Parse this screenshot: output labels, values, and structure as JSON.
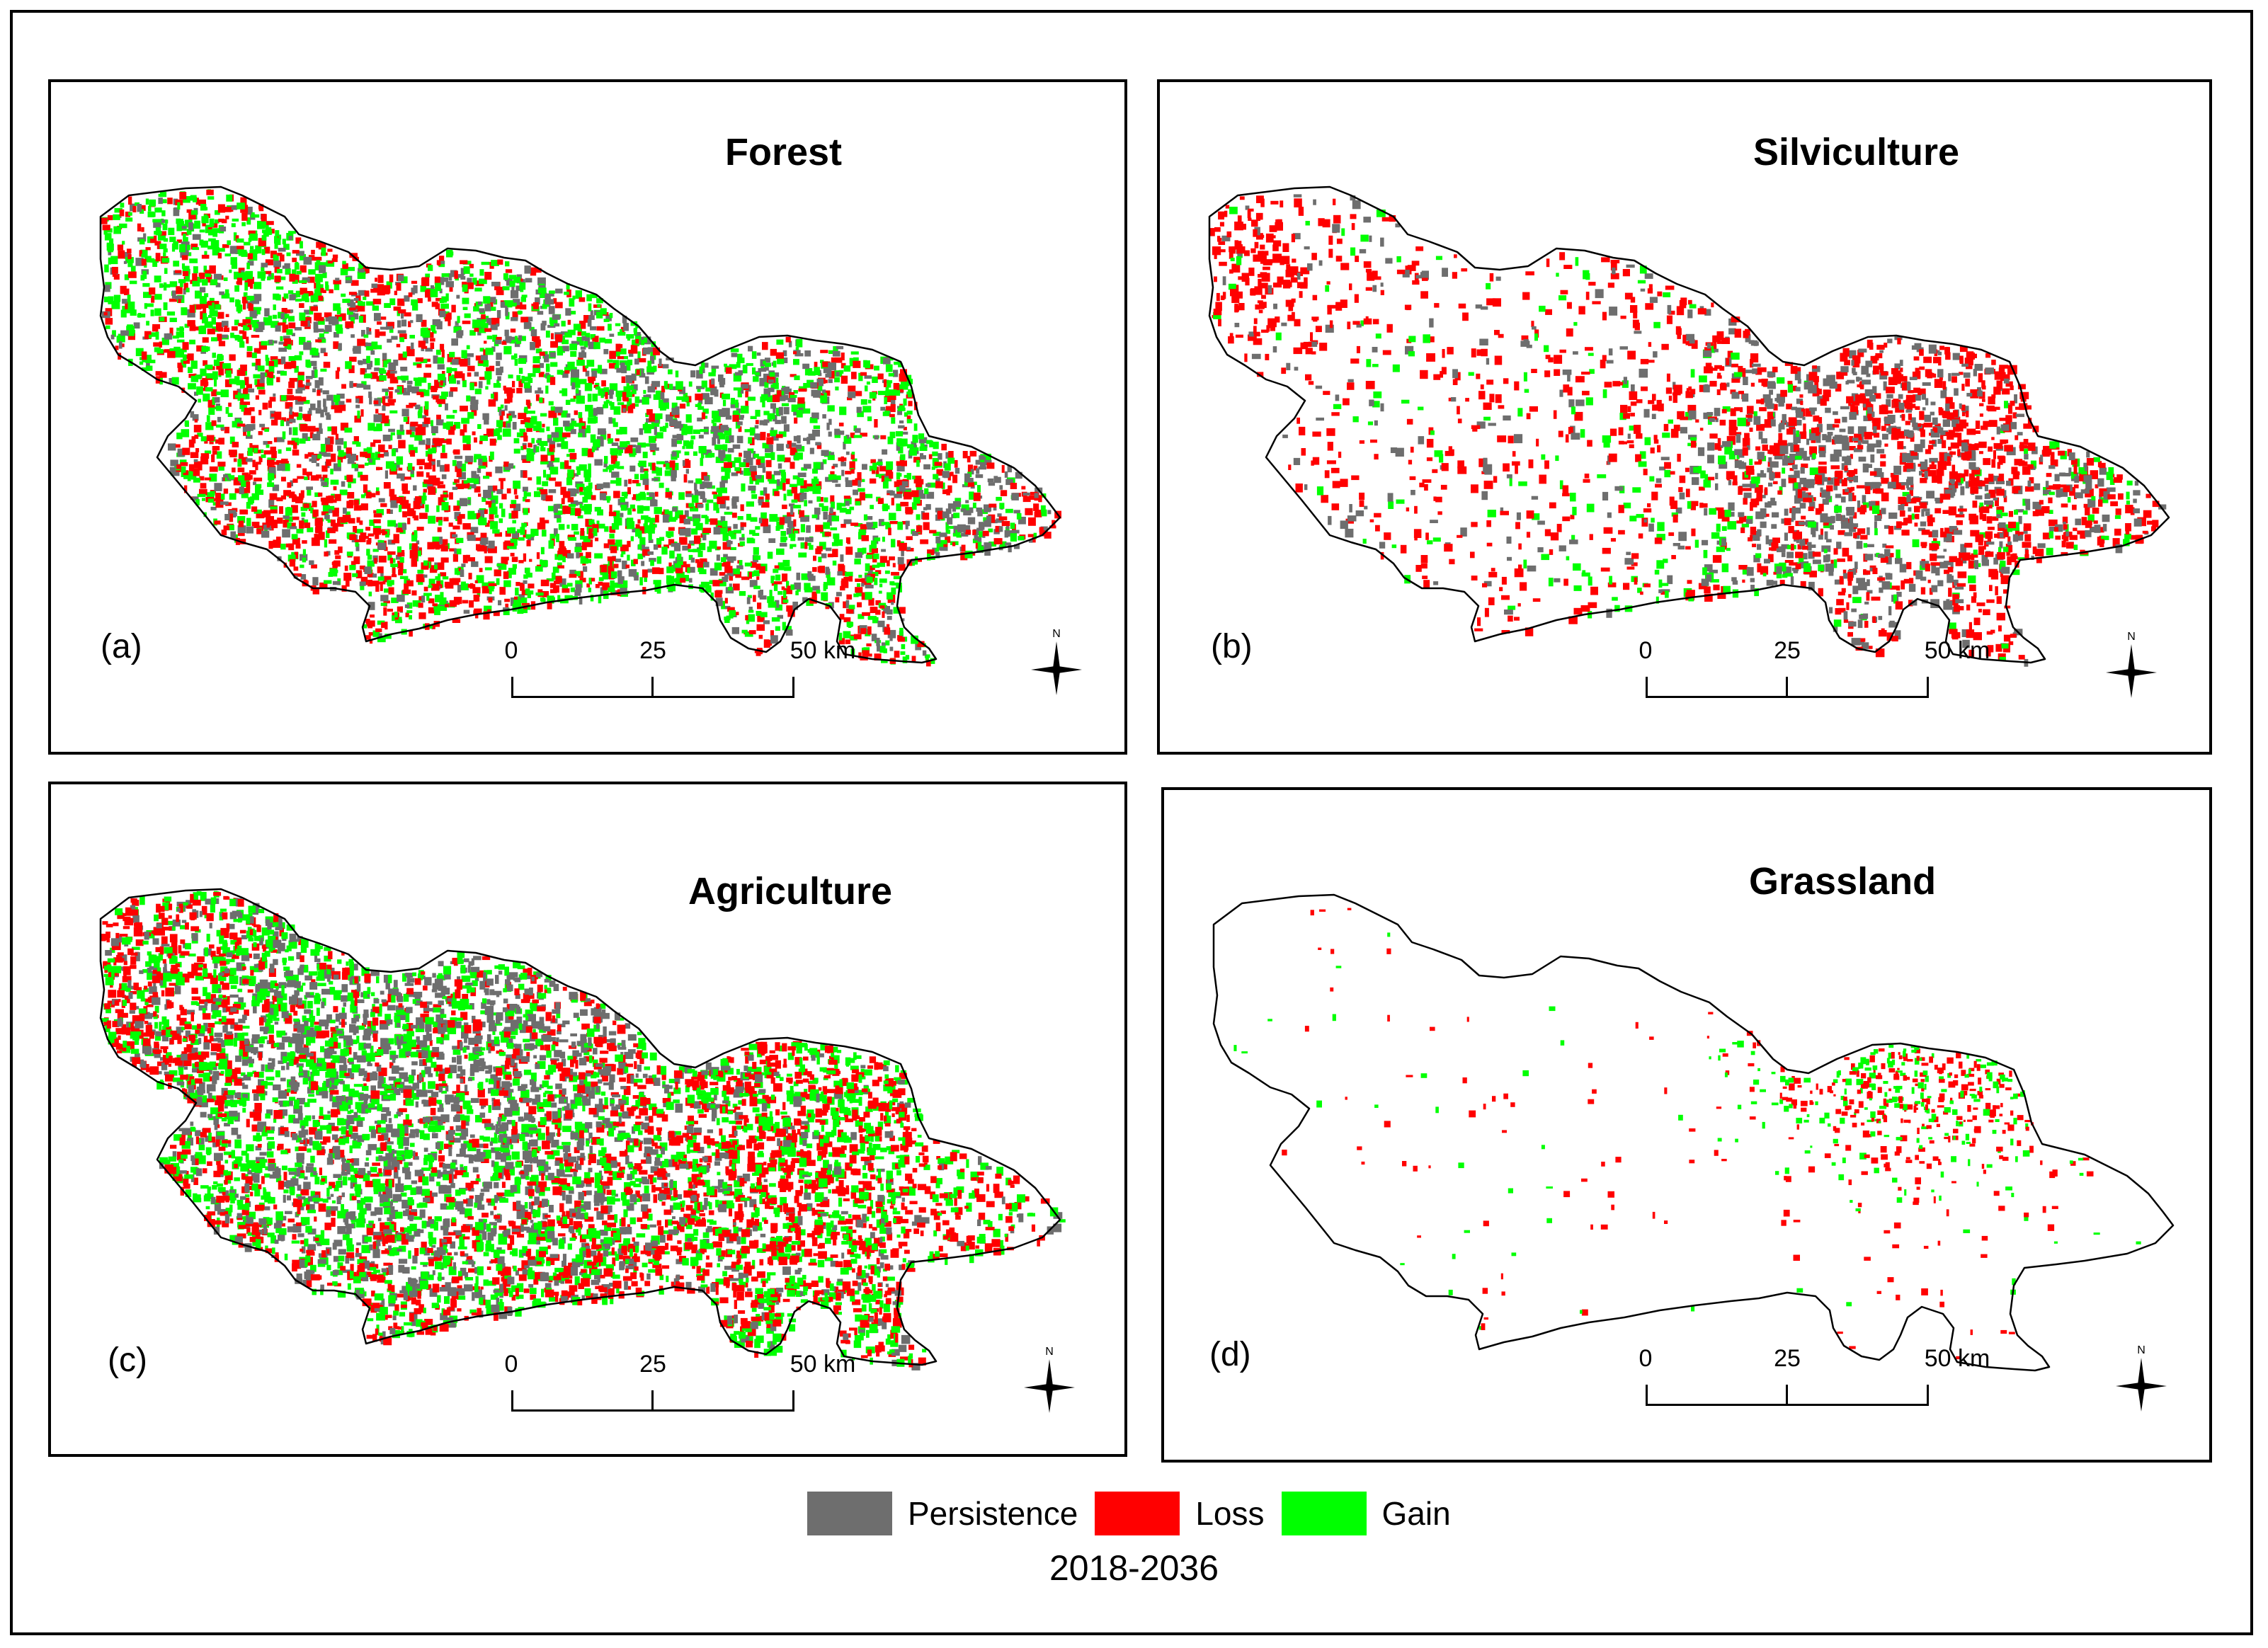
{
  "panels": [
    {
      "id": "a",
      "title": "Forest",
      "label": "(a)"
    },
    {
      "id": "b",
      "title": "Silviculture",
      "label": "(b)"
    },
    {
      "id": "c",
      "title": "Agriculture",
      "label": "(c)"
    },
    {
      "id": "d",
      "title": "Grassland",
      "label": "(d)"
    }
  ],
  "scale_bar": {
    "ticks": [
      "0",
      "25",
      "50 km"
    ]
  },
  "north_arrow": {
    "label": "N"
  },
  "legend": [
    {
      "label": "Persistence",
      "color": "#6e6e6e"
    },
    {
      "label": "Loss",
      "color": "#ff0000"
    },
    {
      "label": "Gain",
      "color": "#00ff00"
    }
  ],
  "period": "2018-2036",
  "colors": {
    "persistence": "#6e6e6e",
    "loss": "#ff0000",
    "gain": "#00ff00",
    "outline": "#000000"
  }
}
